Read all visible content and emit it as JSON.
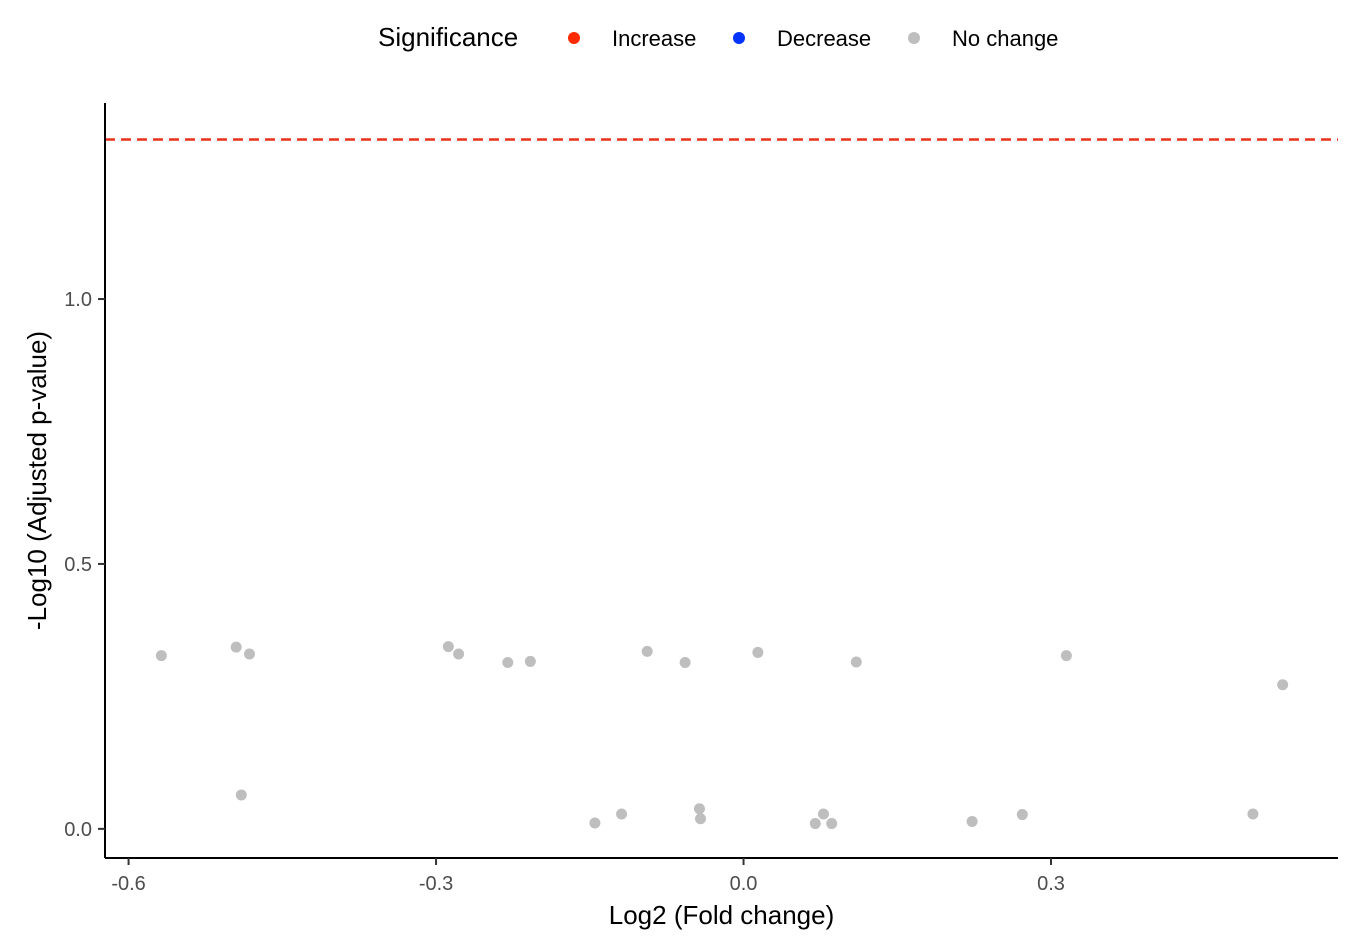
{
  "legend": {
    "title": "Significance",
    "items": [
      {
        "label": "Increase",
        "color": "#ff2a00"
      },
      {
        "label": "Decrease",
        "color": "#0033ff"
      },
      {
        "label": "No change",
        "color": "#bebebe"
      }
    ]
  },
  "chart_data": {
    "type": "scatter",
    "xlabel": "Log2 (Fold change)",
    "ylabel": "-Log10 (Adjusted p-value)",
    "xlim": [
      -0.623,
      0.58
    ],
    "ylim": [
      -0.055,
      1.37
    ],
    "xticks": [
      -0.6,
      -0.3,
      0.0,
      0.3
    ],
    "xtick_labels": [
      "-0.6",
      "-0.3",
      "0.0",
      "0.3"
    ],
    "yticks": [
      0.0,
      0.5,
      1.0
    ],
    "ytick_labels": [
      "0.0",
      "0.5",
      "1.0"
    ],
    "threshold_line": {
      "y": 1.301,
      "color": "#e8301a",
      "style": "dashed"
    },
    "grid": false,
    "legend_position": "top",
    "series": [
      {
        "name": "No change",
        "color": "#bebebe",
        "points": [
          {
            "x": -0.568,
            "y": 0.327
          },
          {
            "x": -0.495,
            "y": 0.343
          },
          {
            "x": -0.482,
            "y": 0.33
          },
          {
            "x": -0.49,
            "y": 0.064
          },
          {
            "x": -0.288,
            "y": 0.344
          },
          {
            "x": -0.278,
            "y": 0.33
          },
          {
            "x": -0.23,
            "y": 0.314
          },
          {
            "x": -0.208,
            "y": 0.316
          },
          {
            "x": -0.145,
            "y": 0.011
          },
          {
            "x": -0.119,
            "y": 0.028
          },
          {
            "x": -0.094,
            "y": 0.335
          },
          {
            "x": -0.057,
            "y": 0.314
          },
          {
            "x": -0.043,
            "y": 0.038
          },
          {
            "x": -0.042,
            "y": 0.019
          },
          {
            "x": 0.014,
            "y": 0.333
          },
          {
            "x": 0.07,
            "y": 0.01
          },
          {
            "x": 0.078,
            "y": 0.028
          },
          {
            "x": 0.086,
            "y": 0.01
          },
          {
            "x": 0.11,
            "y": 0.315
          },
          {
            "x": 0.223,
            "y": 0.014
          },
          {
            "x": 0.272,
            "y": 0.027
          },
          {
            "x": 0.315,
            "y": 0.327
          },
          {
            "x": 0.497,
            "y": 0.028
          },
          {
            "x": 0.526,
            "y": 0.272
          }
        ]
      }
    ]
  }
}
